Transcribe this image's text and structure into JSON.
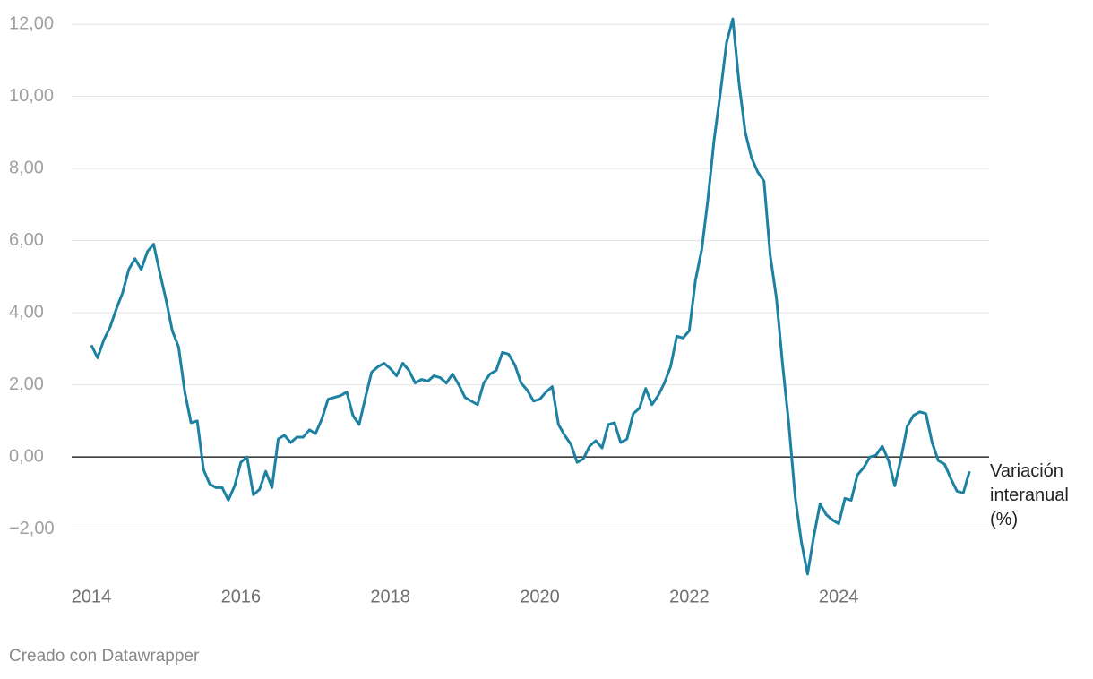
{
  "chart_data": {
    "type": "line",
    "line_label": "Variación interanual (%)",
    "source": "Creado con Datawrapper",
    "xlim": [
      2014,
      2026
    ],
    "xticks": [
      2014,
      2016,
      2018,
      2020,
      2022,
      2024
    ],
    "ylim": [
      -3.5,
      12.5
    ],
    "yticks": [
      {
        "value": -2,
        "label": "−2,00"
      },
      {
        "value": 0,
        "label": "0,00"
      },
      {
        "value": 2,
        "label": "2,00"
      },
      {
        "value": 4,
        "label": "4,00"
      },
      {
        "value": 6,
        "label": "6,00"
      },
      {
        "value": 8,
        "label": "8,00"
      },
      {
        "value": 10,
        "label": "10,00"
      },
      {
        "value": 12,
        "label": "12,00"
      }
    ],
    "grid": true,
    "x": [
      2014,
      2014.083,
      2014.167,
      2014.25,
      2014.333,
      2014.417,
      2014.5,
      2014.583,
      2014.667,
      2014.75,
      2014.833,
      2014.917,
      2015,
      2015.083,
      2015.167,
      2015.25,
      2015.333,
      2015.417,
      2015.5,
      2015.583,
      2015.667,
      2015.75,
      2015.833,
      2015.917,
      2016,
      2016.083,
      2016.167,
      2016.25,
      2016.333,
      2016.417,
      2016.5,
      2016.583,
      2016.667,
      2016.75,
      2016.833,
      2016.917,
      2017,
      2017.083,
      2017.167,
      2017.25,
      2017.333,
      2017.417,
      2017.5,
      2017.583,
      2017.667,
      2017.75,
      2017.833,
      2017.917,
      2018,
      2018.083,
      2018.167,
      2018.25,
      2018.333,
      2018.417,
      2018.5,
      2018.583,
      2018.667,
      2018.75,
      2018.833,
      2018.917,
      2019,
      2019.083,
      2019.167,
      2019.25,
      2019.333,
      2019.417,
      2019.5,
      2019.583,
      2019.667,
      2019.75,
      2019.833,
      2019.917,
      2020,
      2020.083,
      2020.167,
      2020.25,
      2020.333,
      2020.417,
      2020.5,
      2020.583,
      2020.667,
      2020.75,
      2020.833,
      2020.917,
      2021,
      2021.083,
      2021.167,
      2021.25,
      2021.333,
      2021.417,
      2021.5,
      2021.583,
      2021.667,
      2021.75,
      2021.833,
      2021.917,
      2022,
      2022.083,
      2022.167,
      2022.25,
      2022.333,
      2022.417,
      2022.5,
      2022.583,
      2022.667,
      2022.75,
      2022.833,
      2022.917,
      2023,
      2023.083,
      2023.167,
      2023.25,
      2023.333,
      2023.417,
      2023.5,
      2023.583,
      2023.667,
      2023.75,
      2023.833,
      2023.917,
      2024,
      2024.083,
      2024.167,
      2024.25,
      2024.333,
      2024.417,
      2024.5,
      2024.583,
      2024.667,
      2024.75,
      2024.833,
      2024.917,
      2025,
      2025.083,
      2025.167,
      2025.25,
      2025.333,
      2025.417,
      2025.5,
      2025.583,
      2025.667,
      2025.75
    ],
    "series": [
      {
        "color": "#1d81a2",
        "values": [
          3.1,
          2.75,
          3.25,
          3.6,
          4.1,
          4.55,
          5.2,
          5.5,
          5.2,
          5.7,
          5.9,
          5.1,
          4.35,
          3.5,
          3.05,
          1.8,
          0.95,
          1.0,
          -0.35,
          -0.75,
          -0.85,
          -0.85,
          -1.2,
          -0.8,
          -0.15,
          0.0,
          -1.05,
          -0.9,
          -0.4,
          -0.85,
          0.5,
          0.6,
          0.4,
          0.55,
          0.55,
          0.75,
          0.65,
          1.05,
          1.6,
          1.65,
          1.7,
          1.8,
          1.15,
          0.9,
          1.65,
          2.35,
          2.5,
          2.6,
          2.45,
          2.25,
          2.6,
          2.4,
          2.05,
          2.15,
          2.1,
          2.25,
          2.2,
          2.05,
          2.3,
          2.0,
          1.65,
          1.55,
          1.45,
          2.05,
          2.3,
          2.4,
          2.9,
          2.85,
          2.55,
          2.05,
          1.85,
          1.55,
          1.6,
          1.8,
          1.95,
          0.9,
          0.6,
          0.35,
          -0.15,
          -0.05,
          0.3,
          0.45,
          0.25,
          0.9,
          0.95,
          0.4,
          0.5,
          1.2,
          1.35,
          1.9,
          1.45,
          1.7,
          2.05,
          2.5,
          3.35,
          3.3,
          3.5,
          4.9,
          5.75,
          7.15,
          8.8,
          10.1,
          11.5,
          12.15,
          10.35,
          9.0,
          8.3,
          7.9,
          7.65,
          5.6,
          4.4,
          2.55,
          0.9,
          -1.1,
          -2.35,
          -3.25,
          -2.2,
          -1.3,
          -1.6,
          -1.75,
          -1.85,
          -1.15,
          -1.2,
          -0.5,
          -0.3,
          0.0,
          0.05,
          0.3,
          -0.1,
          -0.8,
          -0.05,
          0.85,
          1.15,
          1.25,
          1.2,
          0.4,
          -0.1,
          -0.2,
          -0.6,
          -0.95,
          -1.0,
          -0.4
        ]
      }
    ]
  }
}
